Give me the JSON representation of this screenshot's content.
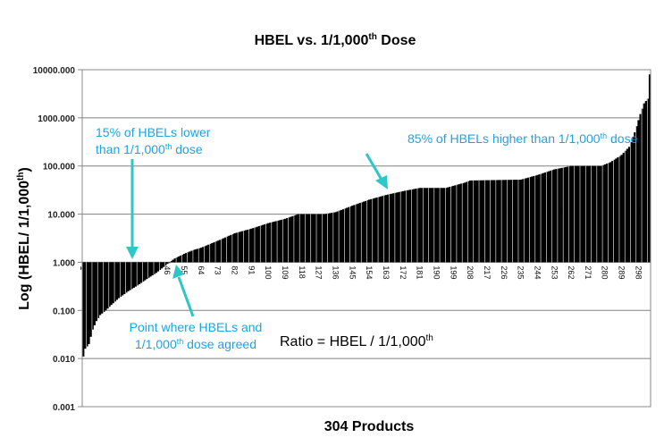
{
  "chart_data": {
    "type": "bar",
    "title": {
      "main": "HBEL vs. 1/1,000",
      "sup": "th",
      "end": " Dose"
    },
    "xlabel": "304 Products",
    "ylabel": {
      "main": "Log (HBEL/ 1/1,000",
      "sup": "th",
      "end": ")"
    },
    "yscale": "log",
    "ylim": [
      0.001,
      10000
    ],
    "baseline": 1,
    "yticks": [
      "10000.000",
      "1000.000",
      "100.000",
      "10.000",
      "1.000",
      "0.100",
      "0.010",
      "0.001"
    ],
    "ytick_values": [
      10000,
      1000,
      100,
      10,
      1,
      0.1,
      0.01,
      0.001
    ],
    "n_products": 304,
    "xticks": [
      1,
      10,
      19,
      28,
      37,
      46,
      55,
      64,
      73,
      82,
      91,
      100,
      109,
      118,
      127,
      136,
      145,
      154,
      163,
      172,
      181,
      190,
      199,
      208,
      217,
      226,
      235,
      244,
      253,
      262,
      271,
      280,
      289,
      298
    ],
    "grid": "horizontal",
    "sorted_values_anchor_x": [
      1,
      2,
      4,
      6,
      8,
      10,
      13,
      16,
      20,
      25,
      30,
      35,
      40,
      44,
      47,
      50,
      55,
      60,
      64,
      73,
      82,
      91,
      100,
      109,
      116,
      130,
      136,
      145,
      154,
      163,
      172,
      181,
      195,
      205,
      208,
      235,
      244,
      253,
      262,
      278,
      283,
      289,
      293,
      296,
      299,
      301,
      303,
      304
    ],
    "sorted_values_anchor_y": [
      0.011,
      0.016,
      0.02,
      0.04,
      0.06,
      0.08,
      0.1,
      0.13,
      0.18,
      0.25,
      0.33,
      0.45,
      0.6,
      0.8,
      1.0,
      1.2,
      1.5,
      1.8,
      2,
      2.8,
      4,
      5,
      6.5,
      8,
      10,
      10,
      11,
      15,
      20,
      25,
      30,
      35,
      35,
      45,
      50,
      52,
      65,
      85,
      100,
      100,
      120,
      170,
      250,
      500,
      1200,
      2000,
      2500,
      8000
    ],
    "annotations": {
      "lower": {
        "l1": "15% of HBELs lower",
        "l2a": "than 1/1,000",
        "l2sup": "th",
        "l2b": " dose"
      },
      "higher": {
        "a": "85% of HBELs higher than 1/1,000",
        "sup": "th",
        "b": " dose"
      },
      "agreed": {
        "l1": "Point where HBELs and",
        "l2a": "1/1,000",
        "l2sup": "th",
        "l2b": " dose agreed"
      },
      "ratio": {
        "a": "Ratio =  HBEL / 1/1,000",
        "sup": "th"
      }
    },
    "colors": {
      "bars": "#000000",
      "annotation_text": "#1fa3e3",
      "arrows": "#2ec6c6",
      "grid": "#808080"
    }
  }
}
